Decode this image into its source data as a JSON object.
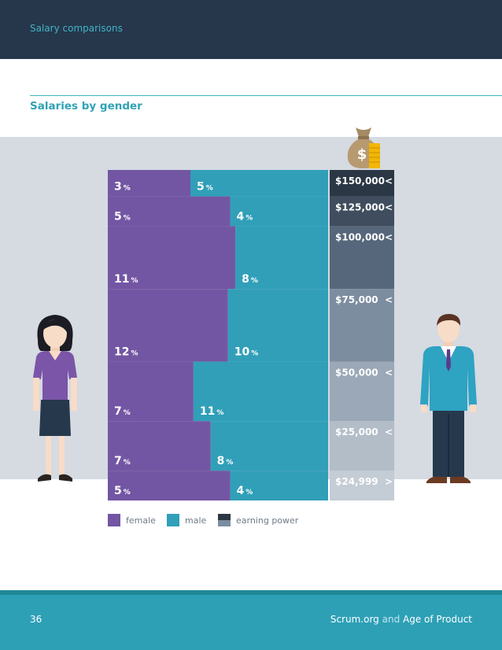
{
  "header": {
    "title": "Salary comparisons"
  },
  "section_title": "Salaries by gender",
  "colors": {
    "female": "#7356a3",
    "male": "#319fb8",
    "earning_power": [
      "#2b3744",
      "#3f4d5e",
      "#56677b",
      "#7c8da0",
      "#9aa8b7",
      "#b3bdc8",
      "#c4ccd5"
    ]
  },
  "chart_data": {
    "type": "bar",
    "title": "Salaries by gender",
    "categories": [
      "$150,000 <",
      "$125,000 <",
      "$100,000 <",
      "$75,000 <",
      "$50,000 <",
      "$25,000 <",
      "$24,999 >"
    ],
    "series": [
      {
        "name": "female",
        "values": [
          3,
          5,
          11,
          12,
          7,
          7,
          5
        ],
        "labels": [
          "3",
          "5",
          "11",
          "12",
          "7",
          "7",
          "5"
        ]
      },
      {
        "name": "male",
        "values": [
          5,
          4,
          8,
          10,
          11,
          8,
          4
        ],
        "labels": [
          "5",
          "4",
          "8",
          "10",
          "11",
          "8",
          "4"
        ]
      }
    ],
    "unit": "%",
    "legend": [
      "female",
      "male",
      "earning power"
    ]
  },
  "footer": {
    "page": "36",
    "left_brand": "Scrum.org",
    "joiner": "and",
    "right_brand": "Age of Product"
  }
}
